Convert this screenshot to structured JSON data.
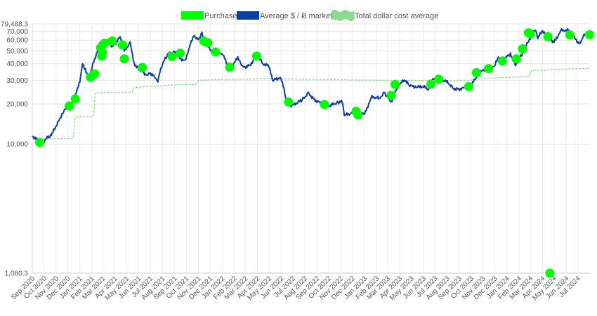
{
  "chart_data": {
    "type": "line",
    "legend": {
      "placement": "top-center",
      "items": [
        {
          "label": "Purchases",
          "color": "#00ff00",
          "style": "box"
        },
        {
          "label": "Average $ / Ƀ market price",
          "color": "#0a3fa0",
          "style": "box"
        },
        {
          "label": "Total dollar cost average",
          "color": "#8fd88f",
          "style": "wavy-box"
        }
      ]
    },
    "y_axis": {
      "type": "log",
      "min": 1080.3,
      "max": 79488.3,
      "ticks": [
        {
          "value": 79488.3,
          "label": "79,488.3"
        },
        {
          "value": 70000,
          "label": "70,000"
        },
        {
          "value": 60000,
          "label": "60,000"
        },
        {
          "value": 50000,
          "label": "50,000"
        },
        {
          "value": 40000,
          "label": "40,000"
        },
        {
          "value": 30000,
          "label": "30,000"
        },
        {
          "value": 20000,
          "label": "20,000"
        },
        {
          "value": 10000,
          "label": "10,000"
        },
        {
          "value": 1080.3,
          "label": "1,080.3"
        }
      ]
    },
    "x_axis": {
      "start": "2020-09-01",
      "end": "2024-08-01",
      "ticks": [
        {
          "date": "2020-09-01",
          "label": "Sep 2020"
        },
        {
          "date": "2020-10-01",
          "label": "Oct 2020"
        },
        {
          "date": "2020-11-01",
          "label": "Nov 2020"
        },
        {
          "date": "2020-12-01",
          "label": "Dec 2020"
        },
        {
          "date": "2021-01-01",
          "label": "Jan 2021"
        },
        {
          "date": "2021-02-01",
          "label": "Feb 2021"
        },
        {
          "date": "2021-03-01",
          "label": "Mar 2021"
        },
        {
          "date": "2021-04-01",
          "label": "Apr 2021"
        },
        {
          "date": "2021-05-01",
          "label": "May 2021"
        },
        {
          "date": "2021-06-01",
          "label": "Jun 2021"
        },
        {
          "date": "2021-07-01",
          "label": "Jul 2021"
        },
        {
          "date": "2021-08-01",
          "label": "Aug 2021"
        },
        {
          "date": "2021-09-01",
          "label": "Sep 2021"
        },
        {
          "date": "2021-10-01",
          "label": "Oct 2021"
        },
        {
          "date": "2021-11-01",
          "label": "Nov 2021"
        },
        {
          "date": "2021-12-01",
          "label": "Dec 2021"
        },
        {
          "date": "2022-01-01",
          "label": "Jan 2022"
        },
        {
          "date": "2022-02-01",
          "label": "Feb 2022"
        },
        {
          "date": "2022-03-01",
          "label": "Mar 2022"
        },
        {
          "date": "2022-04-01",
          "label": "Apr 2022"
        },
        {
          "date": "2022-05-01",
          "label": "May 2022"
        },
        {
          "date": "2022-06-01",
          "label": "Jun 2022"
        },
        {
          "date": "2022-07-01",
          "label": "Jul 2022"
        },
        {
          "date": "2022-08-01",
          "label": "Aug 2022"
        },
        {
          "date": "2022-09-01",
          "label": "Sep 2022"
        },
        {
          "date": "2022-10-01",
          "label": "Oct 2022"
        },
        {
          "date": "2022-11-01",
          "label": "Nov 2022"
        },
        {
          "date": "2022-12-01",
          "label": "Dec 2022"
        },
        {
          "date": "2023-01-01",
          "label": "Jan 2023"
        },
        {
          "date": "2023-02-01",
          "label": "Feb 2023"
        },
        {
          "date": "2023-03-01",
          "label": "Mar 2023"
        },
        {
          "date": "2023-04-01",
          "label": "Apr 2023"
        },
        {
          "date": "2023-05-01",
          "label": "May 2023"
        },
        {
          "date": "2023-06-01",
          "label": "Jun 2023"
        },
        {
          "date": "2023-07-01",
          "label": "Jul 2023"
        },
        {
          "date": "2023-08-01",
          "label": "Aug 2023"
        },
        {
          "date": "2023-09-01",
          "label": "Sep 2023"
        },
        {
          "date": "2023-10-01",
          "label": "Oct 2023"
        },
        {
          "date": "2023-11-01",
          "label": "Nov 2023"
        },
        {
          "date": "2023-12-01",
          "label": "Dec 2023"
        },
        {
          "date": "2024-01-01",
          "label": "Jan 2024"
        },
        {
          "date": "2024-02-01",
          "label": "Feb 2024"
        },
        {
          "date": "2024-03-01",
          "label": "Mar 2024"
        },
        {
          "date": "2024-04-01",
          "label": "Apr 2024"
        },
        {
          "date": "2024-05-01",
          "label": "May 2024"
        },
        {
          "date": "2024-06-01",
          "label": "Jun 2024"
        },
        {
          "date": "2024-07-01",
          "label": "Jul 2024"
        }
      ]
    },
    "grid": true,
    "series": [
      {
        "name": "Average $ / Ƀ market price",
        "color": "#0a3fa0",
        "points": [
          [
            "2020-09-01",
            11500
          ],
          [
            "2020-09-15",
            10700
          ],
          [
            "2020-10-01",
            10600
          ],
          [
            "2020-10-20",
            11800
          ],
          [
            "2020-11-01",
            13500
          ],
          [
            "2020-11-20",
            17500
          ],
          [
            "2020-12-01",
            19000
          ],
          [
            "2020-12-15",
            21000
          ],
          [
            "2021-01-01",
            29000
          ],
          [
            "2021-01-08",
            40000
          ],
          [
            "2021-01-15",
            36000
          ],
          [
            "2021-01-25",
            31500
          ],
          [
            "2021-02-10",
            45000
          ],
          [
            "2021-02-21",
            57000
          ],
          [
            "2021-02-28",
            45500
          ],
          [
            "2021-03-13",
            61000
          ],
          [
            "2021-03-25",
            53000
          ],
          [
            "2021-04-14",
            63000
          ],
          [
            "2021-04-25",
            50000
          ],
          [
            "2021-05-10",
            57000
          ],
          [
            "2021-05-20",
            40000
          ],
          [
            "2021-06-01",
            36500
          ],
          [
            "2021-06-20",
            33000
          ],
          [
            "2021-07-01",
            34000
          ],
          [
            "2021-07-20",
            30000
          ],
          [
            "2021-08-01",
            40000
          ],
          [
            "2021-08-15",
            47000
          ],
          [
            "2021-09-01",
            49000
          ],
          [
            "2021-09-10",
            45000
          ],
          [
            "2021-09-28",
            41500
          ],
          [
            "2021-10-20",
            65000
          ],
          [
            "2021-11-01",
            60500
          ],
          [
            "2021-11-10",
            68000
          ],
          [
            "2021-11-20",
            57000
          ],
          [
            "2021-12-05",
            49000
          ],
          [
            "2021-12-20",
            47500
          ],
          [
            "2022-01-01",
            47500
          ],
          [
            "2022-01-20",
            36500
          ],
          [
            "2022-02-10",
            44000
          ],
          [
            "2022-02-24",
            37500
          ],
          [
            "2022-03-15",
            39000
          ],
          [
            "2022-03-30",
            47000
          ],
          [
            "2022-04-15",
            40000
          ],
          [
            "2022-05-01",
            38500
          ],
          [
            "2022-05-10",
            30000
          ],
          [
            "2022-05-31",
            31500
          ],
          [
            "2022-06-13",
            22500
          ],
          [
            "2022-06-18",
            19500
          ],
          [
            "2022-07-01",
            19500
          ],
          [
            "2022-07-25",
            21500
          ],
          [
            "2022-08-10",
            24000
          ],
          [
            "2022-08-25",
            21500
          ],
          [
            "2022-09-15",
            20000
          ],
          [
            "2022-10-01",
            19300
          ],
          [
            "2022-10-25",
            20500
          ],
          [
            "2022-11-05",
            21000
          ],
          [
            "2022-11-10",
            16500
          ],
          [
            "2022-11-30",
            17000
          ],
          [
            "2022-12-15",
            17500
          ],
          [
            "2023-01-01",
            16700
          ],
          [
            "2023-01-20",
            22500
          ],
          [
            "2023-02-10",
            22000
          ],
          [
            "2023-02-20",
            24500
          ],
          [
            "2023-03-10",
            20500
          ],
          [
            "2023-03-30",
            28000
          ],
          [
            "2023-04-15",
            30200
          ],
          [
            "2023-04-25",
            27500
          ],
          [
            "2023-05-15",
            26800
          ],
          [
            "2023-06-01",
            27000
          ],
          [
            "2023-06-15",
            25500
          ],
          [
            "2023-06-25",
            30500
          ],
          [
            "2023-07-15",
            30500
          ],
          [
            "2023-08-01",
            29200
          ],
          [
            "2023-08-17",
            26000
          ],
          [
            "2023-09-01",
            25800
          ],
          [
            "2023-09-15",
            26500
          ],
          [
            "2023-10-01",
            27500
          ],
          [
            "2023-10-24",
            34500
          ],
          [
            "2023-11-10",
            37000
          ],
          [
            "2023-11-30",
            37700
          ],
          [
            "2023-12-08",
            44000
          ],
          [
            "2023-12-20",
            43000
          ],
          [
            "2024-01-10",
            47000
          ],
          [
            "2024-01-23",
            39000
          ],
          [
            "2024-02-10",
            47500
          ],
          [
            "2024-02-28",
            61000
          ],
          [
            "2024-03-14",
            73000
          ],
          [
            "2024-03-20",
            62500
          ],
          [
            "2024-04-01",
            70000
          ],
          [
            "2024-04-15",
            63000
          ],
          [
            "2024-05-01",
            58000
          ],
          [
            "2024-05-20",
            71000
          ],
          [
            "2024-06-07",
            71000
          ],
          [
            "2024-06-25",
            61000
          ],
          [
            "2024-07-05",
            56500
          ],
          [
            "2024-07-20",
            67500
          ],
          [
            "2024-08-01",
            65000
          ]
        ]
      },
      {
        "name": "Total dollar cost average",
        "color": "#8fd88f",
        "points": [
          [
            "2020-09-01",
            10900
          ],
          [
            "2020-12-15",
            11000
          ],
          [
            "2020-12-20",
            15900
          ],
          [
            "2021-02-05",
            16200
          ],
          [
            "2021-02-10",
            24200
          ],
          [
            "2021-05-15",
            24500
          ],
          [
            "2021-05-20",
            26500
          ],
          [
            "2021-07-20",
            27300
          ],
          [
            "2021-09-01",
            27800
          ],
          [
            "2021-10-25",
            28000
          ],
          [
            "2021-11-01",
            30100
          ],
          [
            "2022-01-15",
            30500
          ],
          [
            "2022-05-01",
            31000
          ],
          [
            "2022-10-01",
            30400
          ],
          [
            "2023-03-01",
            30000
          ],
          [
            "2023-09-20",
            29800
          ],
          [
            "2023-11-01",
            31000
          ],
          [
            "2024-01-01",
            31600
          ],
          [
            "2024-02-25",
            32000
          ],
          [
            "2024-03-05",
            35700
          ],
          [
            "2024-04-10",
            35800
          ],
          [
            "2024-05-25",
            36500
          ],
          [
            "2024-08-01",
            37000
          ]
        ]
      }
    ],
    "purchases": {
      "name": "Purchases",
      "color": "#00ff00",
      "points": [
        [
          "2020-09-20",
          10300
        ],
        [
          "2020-12-05",
          19300
        ],
        [
          "2020-12-20",
          21800
        ],
        [
          "2021-01-28",
          31700
        ],
        [
          "2021-02-08",
          33600
        ],
        [
          "2021-02-23",
          52700
        ],
        [
          "2021-02-26",
          45700
        ],
        [
          "2021-02-28",
          48700
        ],
        [
          "2021-03-05",
          57000
        ],
        [
          "2021-03-25",
          59200
        ],
        [
          "2021-04-20",
          55300
        ],
        [
          "2021-04-25",
          43500
        ],
        [
          "2021-06-10",
          37500
        ],
        [
          "2021-08-25",
          45300
        ],
        [
          "2021-09-15",
          48000
        ],
        [
          "2021-11-15",
          59000
        ],
        [
          "2021-11-25",
          57400
        ],
        [
          "2021-12-15",
          49000
        ],
        [
          "2022-01-20",
          37700
        ],
        [
          "2022-03-30",
          45600
        ],
        [
          "2022-06-20",
          20700
        ],
        [
          "2022-09-20",
          19800
        ],
        [
          "2022-12-10",
          17600
        ],
        [
          "2022-12-15",
          16600
        ],
        [
          "2023-03-10",
          23200
        ],
        [
          "2023-03-20",
          28000
        ],
        [
          "2023-06-20",
          28200
        ],
        [
          "2023-07-10",
          30600
        ],
        [
          "2023-09-25",
          27000
        ],
        [
          "2023-10-15",
          34300
        ],
        [
          "2023-11-15",
          36800
        ],
        [
          "2023-12-20",
          42000
        ],
        [
          "2024-01-25",
          43500
        ],
        [
          "2024-02-10",
          51700
        ],
        [
          "2024-02-25",
          68200
        ],
        [
          "2024-03-01",
          67000
        ],
        [
          "2024-04-15",
          63800
        ],
        [
          "2024-04-20",
          1080.3
        ],
        [
          "2024-06-10",
          65800
        ],
        [
          "2024-07-31",
          66000
        ]
      ]
    }
  }
}
